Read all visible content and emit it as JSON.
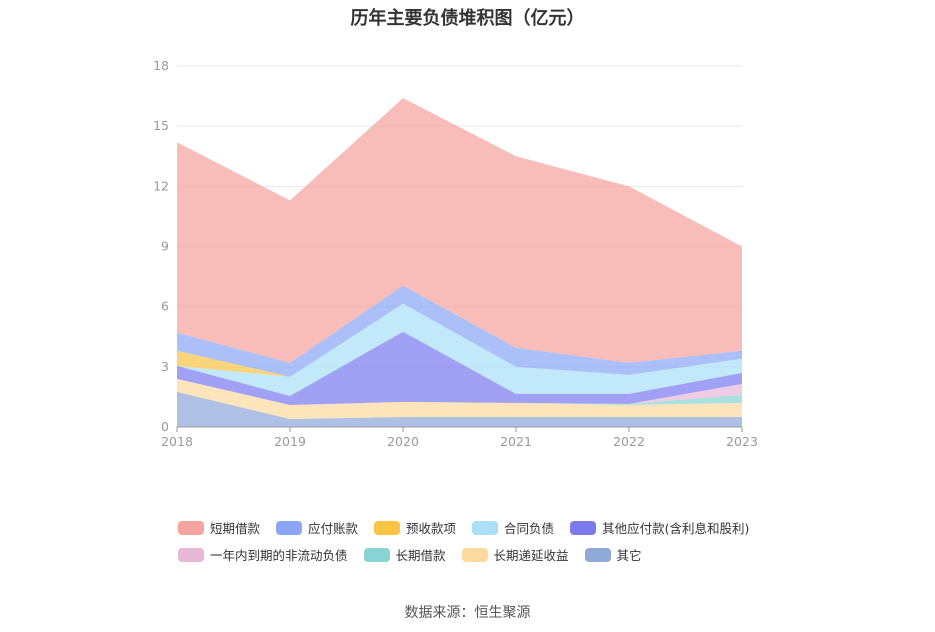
{
  "title": "历年主要负债堆积图（亿元）",
  "source": "数据来源：恒生聚源",
  "chart_data": {
    "type": "area",
    "stacked": true,
    "categories": [
      "2018",
      "2019",
      "2020",
      "2021",
      "2022",
      "2023"
    ],
    "ylim": [
      0,
      18
    ],
    "yticks": [
      0,
      3,
      6,
      9,
      12,
      15,
      18
    ],
    "grid": true,
    "legend_position": "bottom",
    "series": [
      {
        "name": "其它",
        "color": "#8fa9d9",
        "values": [
          1.75,
          0.4,
          0.5,
          0.5,
          0.5,
          0.5
        ]
      },
      {
        "name": "长期递延收益",
        "color": "#fdd9a0",
        "values": [
          0.65,
          0.7,
          0.75,
          0.7,
          0.6,
          0.7
        ]
      },
      {
        "name": "长期借款",
        "color": "#88d4d4",
        "values": [
          0,
          0,
          0,
          0,
          0.05,
          0.4
        ]
      },
      {
        "name": "一年内到期的非流动负债",
        "color": "#e8b8d8",
        "values": [
          0,
          0,
          0,
          0,
          0,
          0.55
        ]
      },
      {
        "name": "其他应付款(含利息和股利)",
        "color": "#7b7bf0",
        "values": [
          0.65,
          0.45,
          3.5,
          0.45,
          0.5,
          0.55
        ]
      },
      {
        "name": "合同负债",
        "color": "#a9e0f7",
        "values": [
          0,
          0.95,
          1.4,
          1.35,
          0.95,
          0.7
        ]
      },
      {
        "name": "预收款项",
        "color": "#fac545",
        "values": [
          0.75,
          0,
          0,
          0,
          0,
          0
        ]
      },
      {
        "name": "应付账款",
        "color": "#8ba6f5",
        "values": [
          0.9,
          0.7,
          0.9,
          0.95,
          0.6,
          0.4
        ]
      },
      {
        "name": "短期借款",
        "color": "#f7a39e",
        "values": [
          9.5,
          8.1,
          9.35,
          9.55,
          8.8,
          5.2
        ]
      }
    ]
  },
  "legend": {
    "row1": [
      {
        "name": "短期借款",
        "color": "#f7a39e"
      },
      {
        "name": "应付账款",
        "color": "#8ba6f5"
      },
      {
        "name": "预收款项",
        "color": "#fac545"
      },
      {
        "name": "合同负债",
        "color": "#a9e0f7"
      },
      {
        "name": "其他应付款(含利息和股利)",
        "color": "#7b7bf0"
      }
    ],
    "row2": [
      {
        "name": "一年内到期的非流动负债",
        "color": "#e8b8d8"
      },
      {
        "name": "长期借款",
        "color": "#88d4d4"
      },
      {
        "name": "长期递延收益",
        "color": "#fdd9a0"
      },
      {
        "name": "其它",
        "color": "#8fa9d9"
      }
    ]
  }
}
